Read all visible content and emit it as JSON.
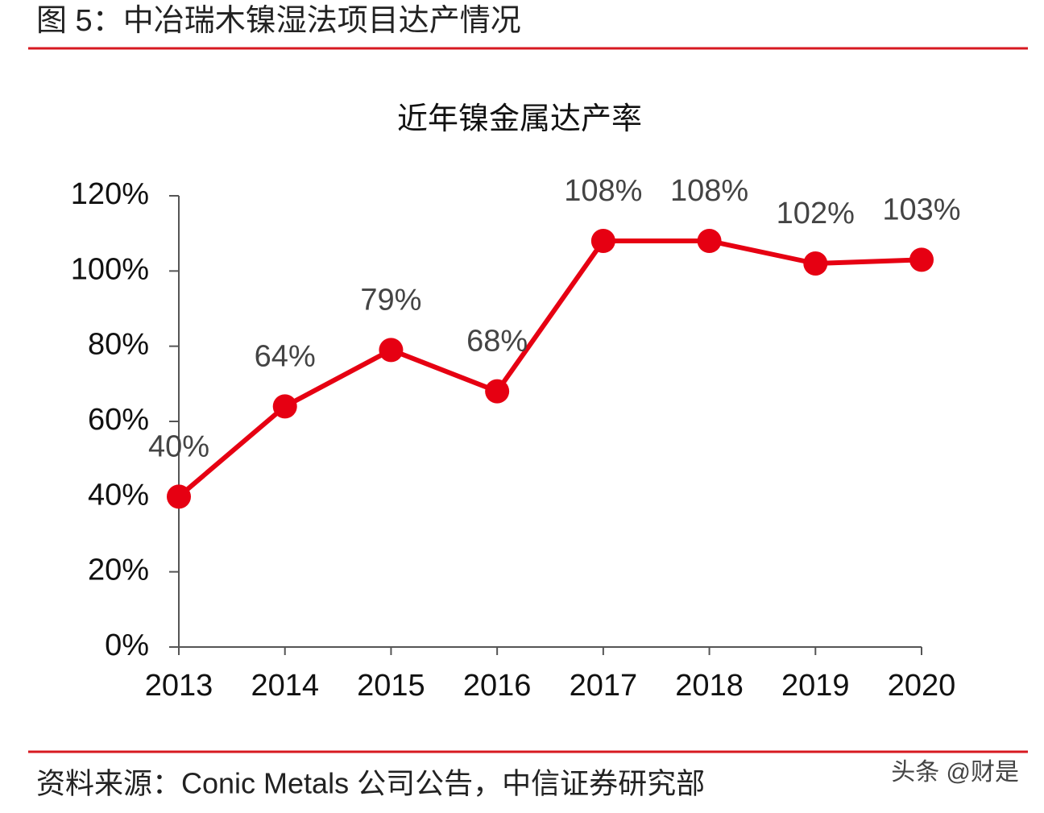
{
  "header": {
    "title": "图 5：中冶瑞木镍湿法项目达产情况"
  },
  "chart_data": {
    "type": "line",
    "title": "近年镍金属达产率",
    "categories": [
      "2013",
      "2014",
      "2015",
      "2016",
      "2017",
      "2018",
      "2019",
      "2020"
    ],
    "values": [
      40,
      64,
      79,
      68,
      108,
      108,
      102,
      103
    ],
    "value_labels": [
      "40%",
      "64%",
      "79%",
      "68%",
      "108%",
      "108%",
      "102%",
      "103%"
    ],
    "color": "#e60012",
    "ylim": [
      0,
      120
    ],
    "yticks": [
      {
        "value": 0,
        "label": "0%"
      },
      {
        "value": 20,
        "label": "20%"
      },
      {
        "value": 40,
        "label": "40%"
      },
      {
        "value": 60,
        "label": "60%"
      },
      {
        "value": 80,
        "label": "80%"
      },
      {
        "value": 100,
        "label": "100%"
      },
      {
        "value": 120,
        "label": "120%"
      }
    ]
  },
  "footer": {
    "source": "资料来源：Conic Metals 公司公告，中信证券研究部",
    "watermark": "头条 @财是"
  }
}
